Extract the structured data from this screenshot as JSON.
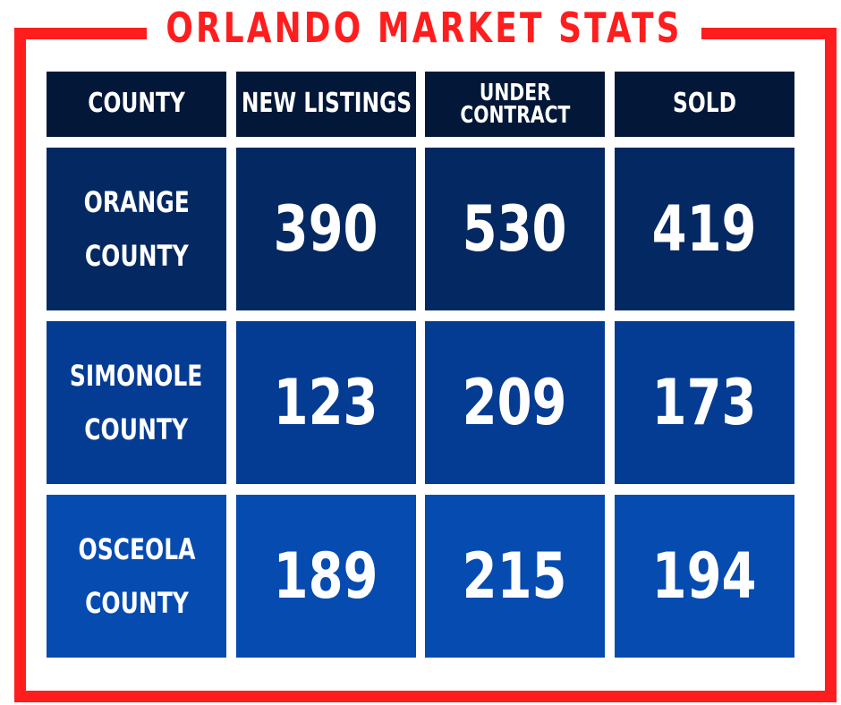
{
  "title": "ORLANDO MARKET STATS",
  "colors": {
    "frame": "#ff1d1d",
    "header_bg": "#031838",
    "row_bgs": [
      "#032862",
      "#053c93",
      "#064bb0"
    ],
    "text": "#ffffff"
  },
  "chart_data": {
    "type": "table",
    "title": "ORLANDO MARKET STATS",
    "columns": [
      "COUNTY",
      "NEW LISTINGS",
      "UNDER\nCONTRACT",
      "SOLD"
    ],
    "rows": [
      {
        "county": "ORANGE\nCOUNTY",
        "new_listings": 390,
        "under_contract": 530,
        "sold": 419
      },
      {
        "county": "SIMONOLE\nCOUNTY",
        "new_listings": 123,
        "under_contract": 209,
        "sold": 173
      },
      {
        "county": "OSCEOLA\nCOUNTY",
        "new_listings": 189,
        "under_contract": 215,
        "sold": 194
      }
    ]
  }
}
